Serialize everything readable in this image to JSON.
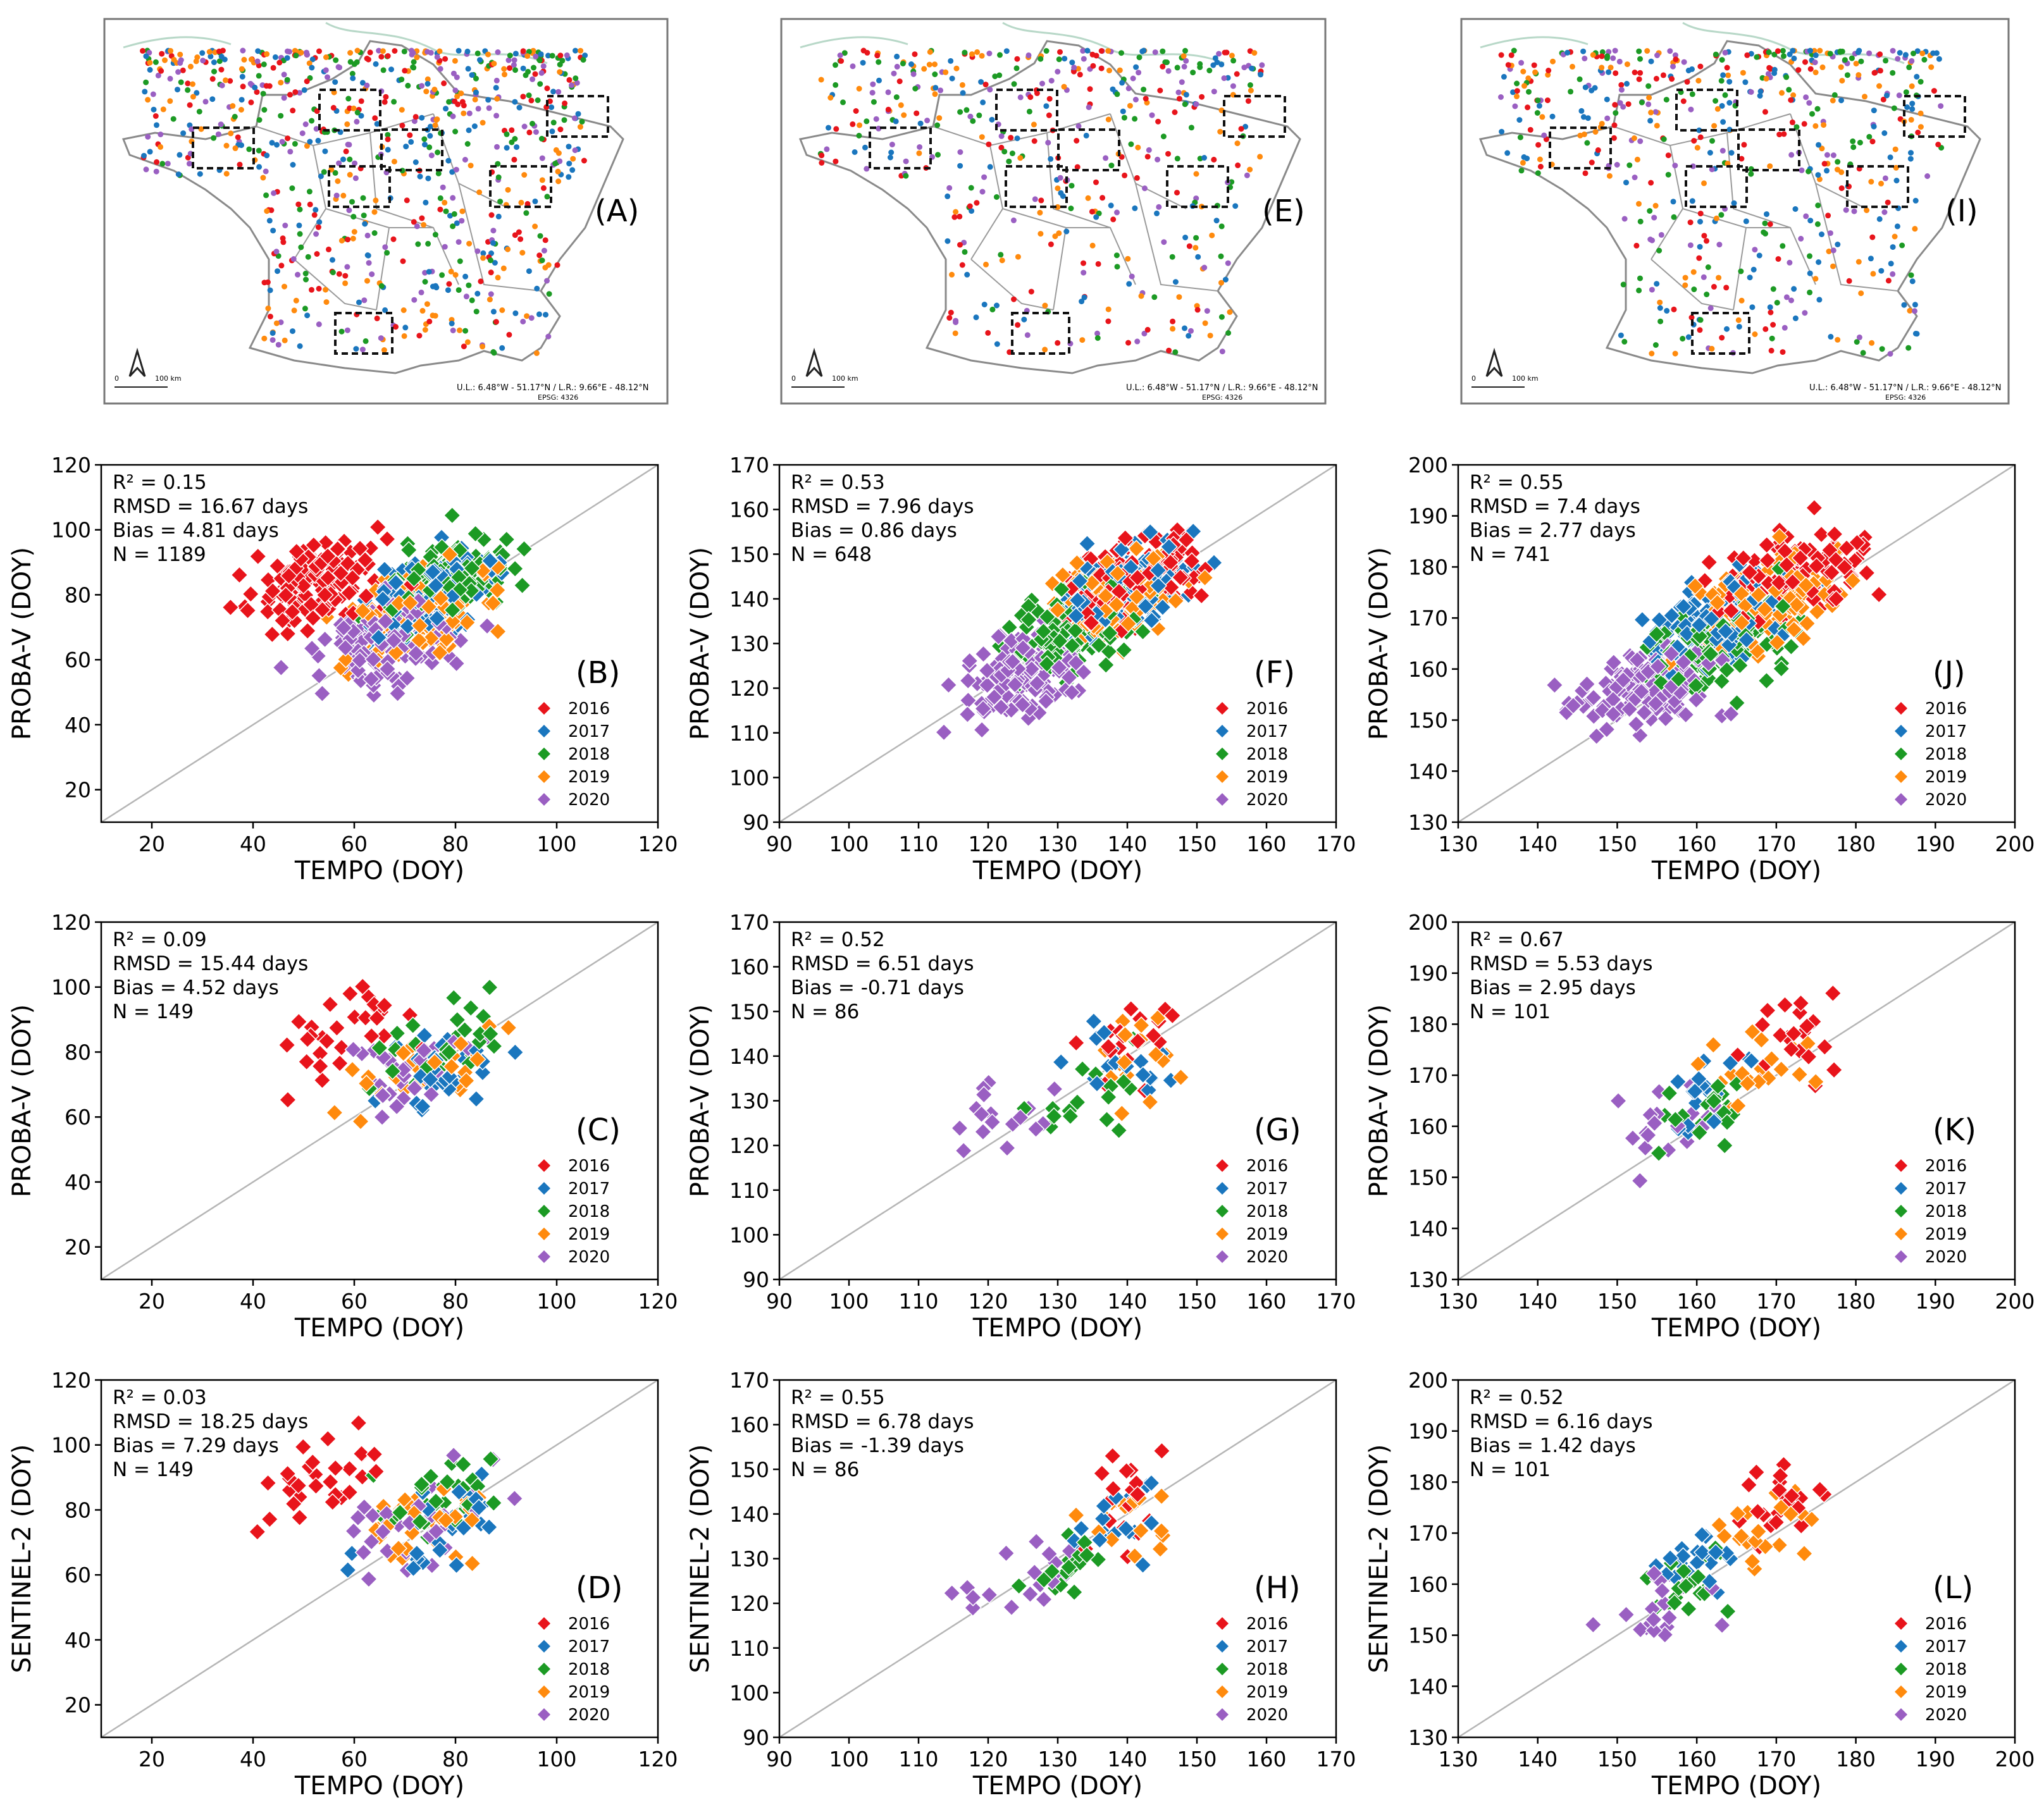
{
  "figure": {
    "legend_years": [
      "2016",
      "2017",
      "2018",
      "2019",
      "2020"
    ],
    "colors": {
      "2016": "#e8141b",
      "2017": "#1a76be",
      "2018": "#1c9a24",
      "2019": "#ff8a0d",
      "2020": "#9a5fc2"
    },
    "map_panels": [
      {
        "label": "(A)",
        "scale_zero": "0",
        "scale_text": "100 km",
        "coord_text": "U.L.: 6.48°W - 51.17°N / L.R.: 9.66°E - 48.12°N",
        "epsg_text": "EPSG: 4326"
      },
      {
        "label": "(E)",
        "scale_zero": "0",
        "scale_text": "100 km",
        "coord_text": "U.L.: 6.48°W - 51.17°N / L.R.: 9.66°E - 48.12°N",
        "epsg_text": "EPSG: 4326"
      },
      {
        "label": "(I)",
        "scale_zero": "0",
        "scale_text": "100 km",
        "coord_text": "U.L.: 6.48°W - 51.17°N / L.R.: 9.66°E - 48.12°N",
        "epsg_text": "EPSG: 4326"
      }
    ]
  },
  "chart_data": [
    {
      "id": "B",
      "type": "scatter",
      "label": "(B)",
      "xlabel": "TEMPO (DOY)",
      "ylabel": "PROBA-V (DOY)",
      "xlim": [
        10,
        120
      ],
      "ylim": [
        10,
        120
      ],
      "xticks": [
        20,
        40,
        60,
        80,
        100,
        120
      ],
      "yticks": [
        20,
        40,
        60,
        80,
        100,
        120
      ],
      "stats": [
        "R² = 0.15",
        "RMSD = 16.67 days",
        "Bias = 4.81 days",
        "N = 1189"
      ],
      "n": 1189,
      "r2": 0.15,
      "rmsd": 16.67,
      "bias": 4.81,
      "x_range": [
        32,
        107
      ],
      "year_centers": {
        "2016": [
          52,
          84
        ],
        "2017": [
          76,
          80
        ],
        "2018": [
          78,
          84
        ],
        "2019": [
          74,
          74
        ],
        "2020": [
          67,
          66
        ]
      },
      "legend": [
        "2016",
        "2017",
        "2018",
        "2019",
        "2020"
      ]
    },
    {
      "id": "F",
      "type": "scatter",
      "label": "(F)",
      "xlabel": "TEMPO (DOY)",
      "ylabel": "PROBA-V (DOY)",
      "xlim": [
        90,
        170
      ],
      "ylim": [
        90,
        170
      ],
      "xticks": [
        90,
        100,
        110,
        120,
        130,
        140,
        150,
        160,
        170
      ],
      "yticks": [
        90,
        100,
        110,
        120,
        130,
        140,
        150,
        160,
        170
      ],
      "stats": [
        "R² = 0.53",
        "RMSD = 7.96 days",
        "Bias = 0.86 days",
        "N = 648"
      ],
      "n": 648,
      "r2": 0.53,
      "rmsd": 7.96,
      "bias": 0.86,
      "x_range": [
        110,
        160
      ],
      "year_centers": {
        "2016": [
          141,
          144
        ],
        "2017": [
          140,
          143
        ],
        "2018": [
          132,
          133
        ],
        "2019": [
          139,
          141
        ],
        "2020": [
          125,
          123
        ]
      },
      "legend": [
        "2016",
        "2017",
        "2018",
        "2019",
        "2020"
      ]
    },
    {
      "id": "J",
      "type": "scatter",
      "label": "(J)",
      "xlabel": "TEMPO (DOY)",
      "ylabel": "PROBA-V (DOY)",
      "xlim": [
        130,
        200
      ],
      "ylim": [
        130,
        200
      ],
      "xticks": [
        130,
        140,
        150,
        160,
        170,
        180,
        190,
        200
      ],
      "yticks": [
        130,
        140,
        150,
        160,
        170,
        180,
        190,
        200
      ],
      "stats": [
        "R² = 0.55",
        "RMSD = 7.4 days",
        "Bias = 2.77 days",
        "N = 741"
      ],
      "n": 741,
      "r2": 0.55,
      "rmsd": 7.4,
      "bias": 2.77,
      "x_range": [
        136,
        187
      ],
      "year_centers": {
        "2016": [
          172,
          178
        ],
        "2017": [
          163,
          170
        ],
        "2018": [
          163,
          165
        ],
        "2019": [
          168,
          173
        ],
        "2020": [
          153,
          157
        ]
      },
      "legend": [
        "2016",
        "2017",
        "2018",
        "2019",
        "2020"
      ]
    },
    {
      "id": "C",
      "type": "scatter",
      "label": "(C)",
      "xlabel": "TEMPO (DOY)",
      "ylabel": "PROBA-V (DOY)",
      "xlim": [
        10,
        120
      ],
      "ylim": [
        10,
        120
      ],
      "xticks": [
        20,
        40,
        60,
        80,
        100,
        120
      ],
      "yticks": [
        20,
        40,
        60,
        80,
        100,
        120
      ],
      "stats": [
        "R² = 0.09",
        "RMSD = 15.44 days",
        "Bias = 4.52 days",
        "N = 149"
      ],
      "n": 149,
      "r2": 0.09,
      "rmsd": 15.44,
      "bias": 4.52,
      "x_range": [
        28,
        107
      ],
      "year_centers": {
        "2016": [
          58,
          86
        ],
        "2017": [
          78,
          75
        ],
        "2018": [
          79,
          81
        ],
        "2019": [
          76,
          75
        ],
        "2020": [
          72,
          75
        ]
      },
      "legend": [
        "2016",
        "2017",
        "2018",
        "2019",
        "2020"
      ]
    },
    {
      "id": "G",
      "type": "scatter",
      "label": "(G)",
      "xlabel": "TEMPO (DOY)",
      "ylabel": "PROBA-V (DOY)",
      "xlim": [
        90,
        170
      ],
      "ylim": [
        90,
        170
      ],
      "xticks": [
        90,
        100,
        110,
        120,
        130,
        140,
        150,
        160,
        170
      ],
      "yticks": [
        90,
        100,
        110,
        120,
        130,
        140,
        150,
        160,
        170
      ],
      "stats": [
        "R² = 0.52",
        "RMSD = 6.51 days",
        "Bias = -0.71 days",
        "N = 86"
      ],
      "n": 86,
      "r2": 0.52,
      "rmsd": 6.51,
      "bias": -0.71,
      "x_range": [
        111,
        152
      ],
      "year_centers": {
        "2016": [
          141,
          144
        ],
        "2017": [
          139,
          137
        ],
        "2018": [
          133,
          130
        ],
        "2019": [
          141,
          138
        ],
        "2020": [
          124,
          127
        ]
      },
      "legend": [
        "2016",
        "2017",
        "2018",
        "2019",
        "2020"
      ]
    },
    {
      "id": "K",
      "type": "scatter",
      "label": "(K)",
      "xlabel": "TEMPO (DOY)",
      "ylabel": "PROBA-V (DOY)",
      "xlim": [
        130,
        200
      ],
      "ylim": [
        130,
        200
      ],
      "xticks": [
        130,
        140,
        150,
        160,
        170,
        180,
        190,
        200
      ],
      "yticks": [
        130,
        140,
        150,
        160,
        170,
        180,
        190,
        200
      ],
      "stats": [
        "R² = 0.67",
        "RMSD = 5.53 days",
        "Bias = 2.95 days",
        "N = 101"
      ],
      "n": 101,
      "r2": 0.67,
      "rmsd": 5.53,
      "bias": 2.95,
      "x_range": [
        143,
        179
      ],
      "year_centers": {
        "2016": [
          172,
          176
        ],
        "2017": [
          162,
          166
        ],
        "2018": [
          161,
          164
        ],
        "2019": [
          168,
          172
        ],
        "2020": [
          157,
          159
        ]
      },
      "legend": [
        "2016",
        "2017",
        "2018",
        "2019",
        "2020"
      ]
    },
    {
      "id": "D",
      "type": "scatter",
      "label": "(D)",
      "xlabel": "TEMPO (DOY)",
      "ylabel": "SENTINEL-2 (DOY)",
      "xlim": [
        10,
        120
      ],
      "ylim": [
        10,
        120
      ],
      "xticks": [
        20,
        40,
        60,
        80,
        100,
        120
      ],
      "yticks": [
        20,
        40,
        60,
        80,
        100,
        120
      ],
      "stats": [
        "R² = 0.03",
        "RMSD = 18.25 days",
        "Bias = 7.29 days",
        "N = 149"
      ],
      "n": 149,
      "r2": 0.03,
      "rmsd": 18.25,
      "bias": 7.29,
      "x_range": [
        28,
        107
      ],
      "year_centers": {
        "2016": [
          55,
          92
        ],
        "2017": [
          75,
          72
        ],
        "2018": [
          80,
          85
        ],
        "2019": [
          76,
          78
        ],
        "2020": [
          72,
          76
        ]
      },
      "legend": [
        "2016",
        "2017",
        "2018",
        "2019",
        "2020"
      ]
    },
    {
      "id": "H",
      "type": "scatter",
      "label": "(H)",
      "xlabel": "TEMPO (DOY)",
      "ylabel": "SENTINEL-2 (DOY)",
      "xlim": [
        90,
        170
      ],
      "ylim": [
        90,
        170
      ],
      "xticks": [
        90,
        100,
        110,
        120,
        130,
        140,
        150,
        160,
        170
      ],
      "yticks": [
        90,
        100,
        110,
        120,
        130,
        140,
        150,
        160,
        170
      ],
      "stats": [
        "R² = 0.55",
        "RMSD = 6.78 days",
        "Bias = -1.39 days",
        "N = 86"
      ],
      "n": 86,
      "r2": 0.55,
      "rmsd": 6.78,
      "bias": -1.39,
      "x_range": [
        111,
        152
      ],
      "year_centers": {
        "2016": [
          140,
          142
        ],
        "2017": [
          138,
          138
        ],
        "2018": [
          133,
          128
        ],
        "2019": [
          141,
          139
        ],
        "2020": [
          124,
          125
        ]
      },
      "legend": [
        "2016",
        "2017",
        "2018",
        "2019",
        "2020"
      ]
    },
    {
      "id": "L",
      "type": "scatter",
      "label": "(L)",
      "xlabel": "TEMPO (DOY)",
      "ylabel": "SENTINEL-2 (DOY)",
      "xlim": [
        130,
        200
      ],
      "ylim": [
        130,
        200
      ],
      "xticks": [
        130,
        140,
        150,
        160,
        170,
        180,
        190,
        200
      ],
      "yticks": [
        130,
        140,
        150,
        160,
        170,
        180,
        190,
        200
      ],
      "stats": [
        "R² = 0.52",
        "RMSD = 6.16 days",
        "Bias = 1.42 days",
        "N = 101"
      ],
      "n": 101,
      "r2": 0.52,
      "rmsd": 6.16,
      "bias": 1.42,
      "x_range": [
        143,
        179
      ],
      "year_centers": {
        "2016": [
          172,
          176
        ],
        "2017": [
          161,
          165
        ],
        "2018": [
          160,
          161
        ],
        "2019": [
          168,
          170
        ],
        "2020": [
          156,
          157
        ]
      },
      "legend": [
        "2016",
        "2017",
        "2018",
        "2019",
        "2020"
      ]
    }
  ]
}
